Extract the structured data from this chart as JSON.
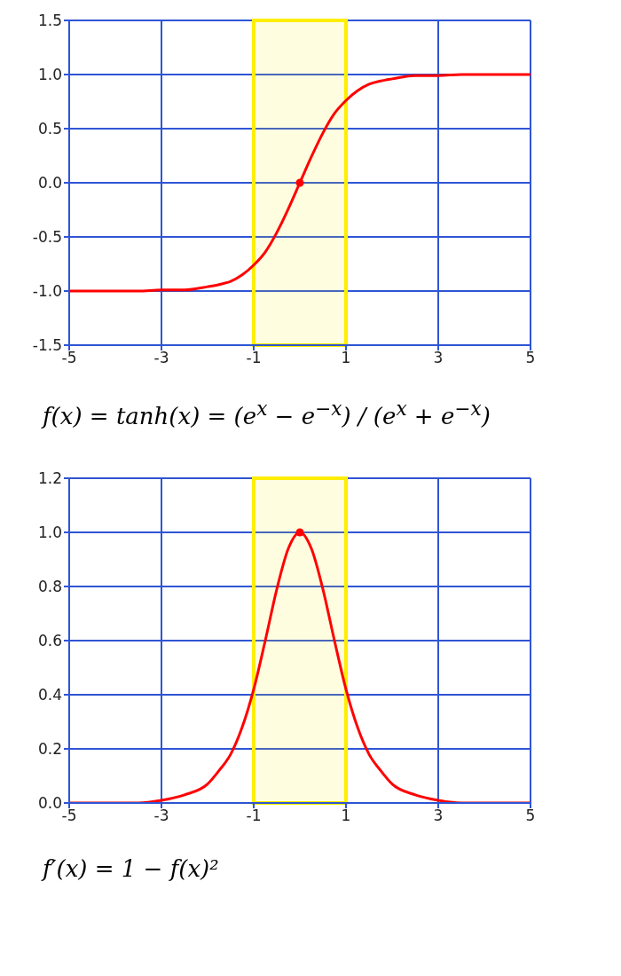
{
  "chart_data": [
    {
      "type": "line",
      "annotations": [
        "f(x) = tanh(x) = (e$^{x}$ − e$^{−x}$) / (e$^{x}$ + e$^{−x}$)"
      ],
      "xlim": [
        -5,
        5
      ],
      "xticks": [
        -5,
        -3,
        -1,
        1,
        3,
        5
      ],
      "ylim": [
        -1.5,
        1.5
      ],
      "yticks": [
        {
          "value": -1.5,
          "label": "-1.5"
        },
        {
          "value": -1,
          "label": "-1.0"
        },
        {
          "value": -0.5,
          "label": "-0.5"
        },
        {
          "value": 0,
          "label": "0.0"
        },
        {
          "value": 0.5,
          "label": "0.5"
        },
        {
          "value": 1,
          "label": "1.0"
        },
        {
          "value": 1.5,
          "label": "1.5"
        }
      ],
      "grid": true,
      "bands": [
        {
          "axis": "x",
          "from": -1,
          "to": 1,
          "color": "#ffee00"
        }
      ],
      "series": [
        {
          "color": "#ff0000",
          "marker": "none",
          "x": [
            -5,
            -4.5,
            -4,
            -3.5,
            -3,
            -2.5,
            -2,
            -1.75,
            -1.5,
            -1.25,
            -1,
            -0.75,
            -0.5,
            -0.25,
            0,
            0.25,
            0.5,
            0.75,
            1,
            1.25,
            1.5,
            1.75,
            2,
            2.5,
            3,
            3.5,
            4,
            4.5,
            5
          ],
          "values": [
            -1.0,
            -1.0,
            -1.0,
            -1.0,
            -0.99,
            -0.99,
            -0.96,
            -0.94,
            -0.91,
            -0.85,
            -0.76,
            -0.64,
            -0.46,
            -0.24,
            0,
            0.24,
            0.46,
            0.64,
            0.76,
            0.85,
            0.91,
            0.94,
            0.96,
            0.99,
            0.99,
            1.0,
            1.0,
            1.0,
            1.0
          ]
        },
        {
          "type": "scatter",
          "color": "#ff0000",
          "marker": "circle",
          "x": [
            0
          ],
          "values": [
            0
          ]
        }
      ]
    },
    {
      "type": "line",
      "annotations": [
        "f′(x) = 1 − f(x)²"
      ],
      "xlim": [
        -5,
        5
      ],
      "xticks": [
        -5,
        -3,
        -1,
        1,
        3,
        5
      ],
      "ylim": [
        0,
        1.2
      ],
      "yticks": [
        {
          "value": 0,
          "label": "0.0"
        },
        {
          "value": 0.2,
          "label": "0.2"
        },
        {
          "value": 0.4,
          "label": "0.4"
        },
        {
          "value": 0.6,
          "label": "0.6"
        },
        {
          "value": 0.8,
          "label": "0.8"
        },
        {
          "value": 1,
          "label": "1.0"
        },
        {
          "value": 1.2,
          "label": "1.2"
        }
      ],
      "grid": true,
      "bands": [
        {
          "axis": "x",
          "from": -1,
          "to": 1,
          "color": "#ffee00"
        }
      ],
      "series": [
        {
          "color": "#ff0000",
          "marker": "none",
          "x": [
            -5,
            -4.5,
            -4,
            -3.5,
            -3,
            -2.5,
            -2,
            -1.75,
            -1.5,
            -1.25,
            -1,
            -0.75,
            -0.5,
            -0.25,
            0,
            0.25,
            0.5,
            0.75,
            1,
            1.25,
            1.5,
            1.75,
            2,
            2.5,
            3,
            3.5,
            4,
            4.5,
            5
          ],
          "values": [
            0,
            0,
            0,
            0,
            0.01,
            0.03,
            0.07,
            0.12,
            0.18,
            0.28,
            0.42,
            0.6,
            0.79,
            0.94,
            1,
            0.94,
            0.79,
            0.6,
            0.42,
            0.28,
            0.18,
            0.12,
            0.07,
            0.03,
            0.01,
            0,
            0,
            0,
            0
          ]
        },
        {
          "type": "scatter",
          "color": "#ff0000",
          "marker": "circle",
          "x": [
            0
          ],
          "values": [
            1
          ]
        }
      ]
    }
  ]
}
